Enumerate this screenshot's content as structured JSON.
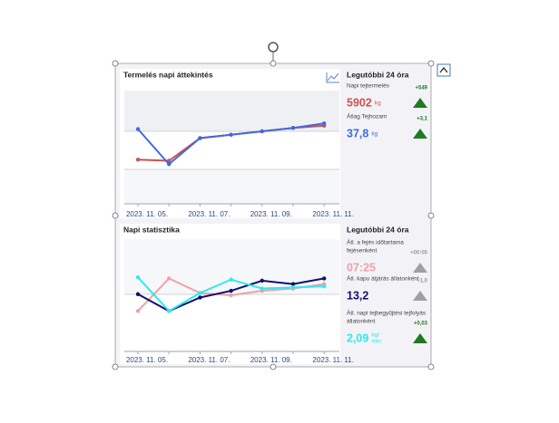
{
  "chart_data": [
    {
      "type": "line",
      "title": "Termelés napi áttekintés",
      "categories": [
        "2023. 11. 05.",
        null,
        "2023. 11. 07.",
        null,
        "2023. 11. 09.",
        null,
        "2023. 11. 11."
      ],
      "ylim": [
        0,
        100
      ],
      "series": [
        {
          "color": "#d05050",
          "values": [
            39,
            38,
            58,
            61,
            64,
            67,
            69
          ]
        },
        {
          "color": "#4169e1",
          "values": [
            66,
            35,
            58,
            61,
            64,
            67,
            71
          ]
        }
      ]
    },
    {
      "type": "line",
      "title": "Napi statisztika",
      "categories": [
        "2023. 11. 05.",
        null,
        "2023. 11. 07.",
        null,
        "2023. 11. 09.",
        null,
        "2023. 11. 11."
      ],
      "ylim": [
        0,
        100
      ],
      "series": [
        {
          "color": "#f0a0a8",
          "values": [
            36,
            65,
            52,
            50,
            54,
            56,
            60
          ]
        },
        {
          "color": "#10106e",
          "values": [
            51,
            36,
            48,
            54,
            63,
            60,
            65
          ]
        },
        {
          "color": "#30e8f0",
          "values": [
            66,
            36,
            52,
            64,
            56,
            57,
            58
          ]
        }
      ]
    }
  ],
  "panels": [
    {
      "title": "Legutóbbi 24 óra",
      "items": [
        {
          "label": [
            "Napi tejtermelés"
          ],
          "value": "5902",
          "unit": [
            "kg"
          ],
          "value_color": "#d05050",
          "delta": "+549",
          "arrow_color": "#1e7b1e"
        },
        {
          "label": [
            "Átlag Tejhozam"
          ],
          "value": "37,8",
          "unit": [
            "kg"
          ],
          "value_color": "#4169e1",
          "delta": "+3,1",
          "arrow_color": "#1e7b1e"
        }
      ]
    },
    {
      "title": "Legutóbbi 24 óra",
      "items": [
        {
          "label": [
            "Átl. a fejés időtartama",
            "fejésenként"
          ],
          "value": "07:25",
          "unit": [],
          "value_color": "#f0a0a8",
          "delta": "+00:05",
          "arrow_color": "#a0a0a0"
        },
        {
          "label": [
            "Átl. kapu átjárás állatonként"
          ],
          "value": "13,2",
          "unit": [],
          "value_color": "#10106e",
          "delta": "+1,0",
          "arrow_color": "#a0a0a0"
        },
        {
          "label": [
            "Átl. napi tejbegyűjtési tejfolyás",
            "állatonként"
          ],
          "value": "2,09",
          "unit": [
            "kg/",
            "min"
          ],
          "value_color": "#30e8f0",
          "delta": "+0,03",
          "arrow_color": "#1e7b1e"
        }
      ]
    }
  ]
}
